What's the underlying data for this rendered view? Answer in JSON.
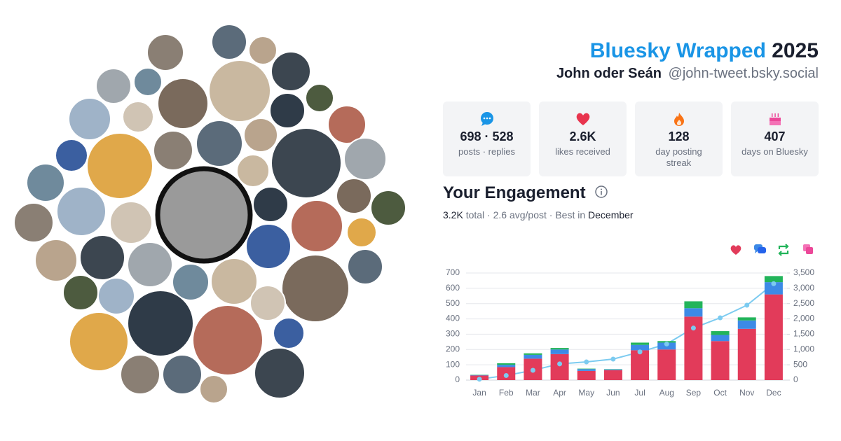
{
  "header": {
    "title": "Bluesky Wrapped",
    "year": "2025",
    "name": "John oder Seán",
    "handle": "@john-tweet.bsky.social"
  },
  "stats": [
    {
      "value": "698 · 528",
      "label": "posts · replies"
    },
    {
      "value": "2.6K",
      "label": "likes received"
    },
    {
      "value": "128",
      "label": "day posting streak"
    },
    {
      "value": "407",
      "label": "days on Bluesky"
    }
  ],
  "engagement": {
    "title": "Your Engagement",
    "summary": [
      "3.2K",
      "total · 2.6 avg/post · Best in",
      "December"
    ]
  },
  "chart_data": {
    "type": "bar",
    "stacked": true,
    "grid": true,
    "categories": [
      "Jan",
      "Feb",
      "Mar",
      "Apr",
      "May",
      "Jun",
      "Jul",
      "Aug",
      "Sep",
      "Oct",
      "Nov",
      "Dec"
    ],
    "series": [
      {
        "color": "#e23b5a",
        "values": [
          30,
          85,
          140,
          170,
          60,
          65,
          195,
          200,
          415,
          255,
          335,
          560
        ]
      },
      {
        "color": "#3d8ae6",
        "values": [
          3,
          15,
          25,
          30,
          12,
          5,
          35,
          45,
          55,
          40,
          55,
          80
        ]
      },
      {
        "color": "#22b45a",
        "values": [
          2,
          10,
          10,
          10,
          3,
          2,
          15,
          10,
          45,
          25,
          20,
          40
        ]
      },
      {
        "color": "#7ccbf0",
        "type": "line",
        "axis": "y2",
        "values": [
          30,
          150,
          320,
          530,
          595,
          686,
          920,
          1180,
          1700,
          2036,
          2448,
          3150
        ]
      }
    ],
    "ylim": [
      0,
      700
    ],
    "yticks": [
      0,
      100,
      200,
      300,
      400,
      500,
      600,
      700
    ],
    "y2lim": [
      0,
      3500
    ],
    "y2ticks": [
      0,
      500,
      {
        "value": 1000,
        "label": "1,000"
      },
      {
        "value": 1500,
        "label": "1,500"
      },
      {
        "value": 2000,
        "label": "2,000"
      },
      {
        "value": 2500,
        "label": "2,500"
      },
      {
        "value": 3000,
        "label": "3,000"
      },
      {
        "value": 3500,
        "label": "3,500"
      }
    ]
  }
}
